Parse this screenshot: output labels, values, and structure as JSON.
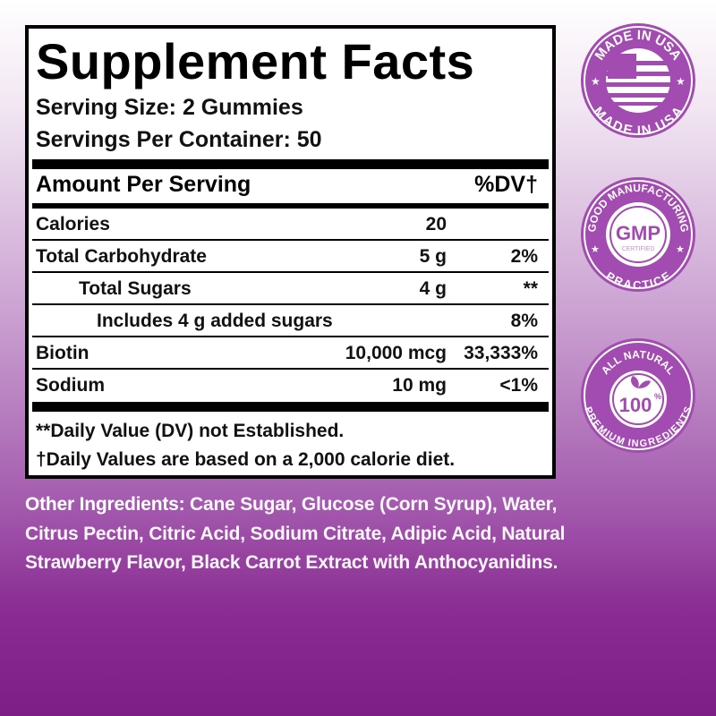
{
  "label": {
    "title": "Supplement Facts",
    "serving_size": "Serving Size: 2 Gummies",
    "servings_per_container": "Servings Per Container: 50",
    "amount_header": "Amount Per Serving",
    "dv_header": "%DV†",
    "rows": [
      {
        "name": "Calories",
        "amount": "20",
        "dv": ""
      },
      {
        "name": "Total Carbohydrate",
        "amount": "5 g",
        "dv": "2%"
      },
      {
        "name": "Total Sugars",
        "amount": "4 g",
        "dv": "**"
      },
      {
        "name": "Includes 4 g added sugars",
        "amount": "",
        "dv": "8%"
      },
      {
        "name": "Biotin",
        "amount": "10,000 mcg",
        "dv": "33,333%"
      },
      {
        "name": "Sodium",
        "amount": "10 mg",
        "dv": "<1%"
      }
    ],
    "footnote_1": "**Daily Value (DV) not Established.",
    "footnote_2": "†Daily Values are based on a 2,000 calorie diet."
  },
  "ingredients": {
    "label": "Other Ingredients:",
    "text": " Cane Sugar, Glucose (Corn Syrup), Water, Citrus Pectin, Citric Acid, Sodium Citrate, Adipic Acid, Natural Strawberry Flavor, Black Carrot Extract with Anthocyanidins."
  },
  "badges": {
    "usa": {
      "top": "MADE IN USA",
      "bottom": "MADE IN USA"
    },
    "gmp": {
      "top": "GOOD MANUFACTURING",
      "bottom": "PRACTICE",
      "center": "GMP",
      "sub": "CERTIFIED"
    },
    "natural": {
      "top": "ALL NATURAL",
      "bottom": "PREMIUM INGREDIENTS",
      "center": "100",
      "unit": "%"
    }
  },
  "colors": {
    "badge": "#a24bb0",
    "text_dark": "#000000",
    "ingredients_text": "#ffffff"
  }
}
